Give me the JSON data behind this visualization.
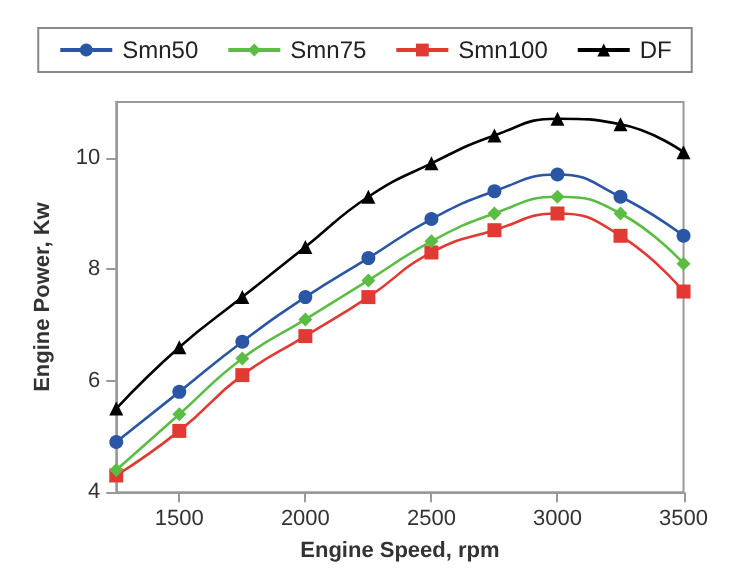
{
  "chart_data": {
    "type": "line",
    "xlabel": "Engine Speed, rpm",
    "ylabel": "Engine Power, Kw",
    "x": [
      1250,
      1500,
      1750,
      2000,
      2250,
      2500,
      2750,
      3000,
      3250,
      3500
    ],
    "xlim": [
      1250,
      3500
    ],
    "xticks": [
      1500,
      2000,
      2500,
      3000,
      3500
    ],
    "ylim": [
      4,
      11
    ],
    "yticks": [
      4,
      6,
      8,
      10
    ],
    "grid": false,
    "legend": "top",
    "series": [
      {
        "name": "Smn50",
        "color": "#2a56a5",
        "marker": "circle",
        "values": [
          4.9,
          5.8,
          6.7,
          7.5,
          8.2,
          8.9,
          9.4,
          9.7,
          9.3,
          8.6
        ]
      },
      {
        "name": "Smn75",
        "color": "#5cbd45",
        "marker": "diamond",
        "values": [
          4.4,
          5.4,
          6.4,
          7.1,
          7.8,
          8.5,
          9.0,
          9.3,
          9.0,
          8.1
        ]
      },
      {
        "name": "Smn100",
        "color": "#e03a33",
        "marker": "square",
        "values": [
          4.3,
          5.1,
          6.1,
          6.8,
          7.5,
          8.3,
          8.7,
          9.0,
          8.6,
          7.6
        ]
      },
      {
        "name": "DF",
        "color": "#000000",
        "marker": "triangle",
        "values": [
          5.5,
          6.6,
          7.5,
          8.4,
          9.3,
          9.9,
          10.4,
          10.7,
          10.6,
          10.1
        ]
      }
    ]
  }
}
